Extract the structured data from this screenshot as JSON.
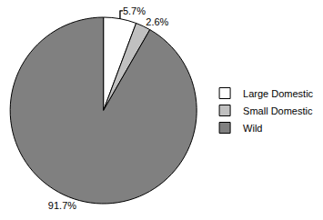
{
  "chart_data": {
    "type": "pie",
    "categories": [
      "Large Domestic",
      "Small Domestic",
      "Wild"
    ],
    "values": [
      5.7,
      2.6,
      91.7
    ],
    "value_labels": [
      "5.7%",
      "2.6%",
      "91.7%"
    ],
    "colors": [
      "#ffffff",
      "#c0c0c0",
      "#808080"
    ],
    "data_labels": true,
    "legend": "right"
  }
}
